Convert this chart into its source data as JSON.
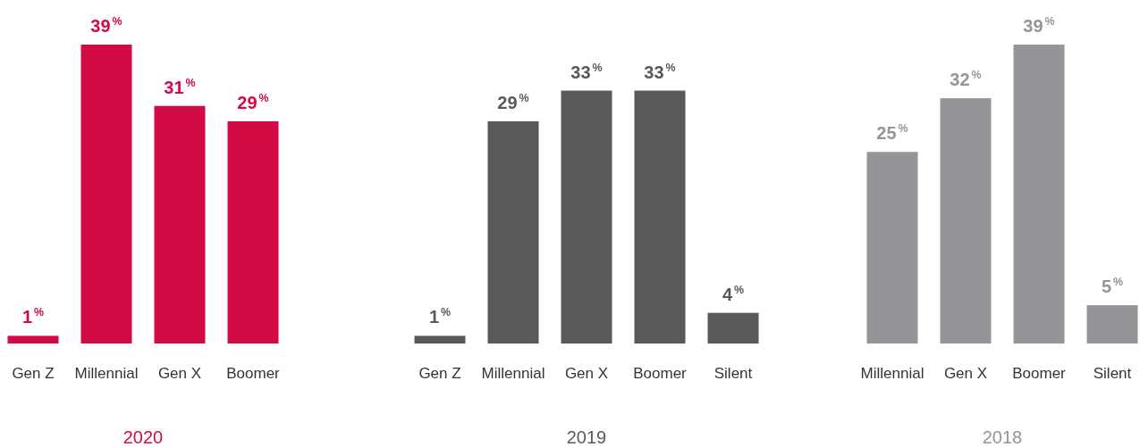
{
  "chart_data": [
    {
      "type": "bar",
      "title": "2020",
      "categories": [
        "Gen Z",
        "Millennial",
        "Gen X",
        "Boomer"
      ],
      "values": [
        1,
        39,
        31,
        29
      ],
      "color": "#d20b44",
      "value_labels": [
        "1$^{%}$",
        "39$^{%}$",
        "31$^{%}$",
        "29$^{%}$"
      ]
    },
    {
      "type": "bar",
      "title": "2019",
      "categories": [
        "Gen Z",
        "Millennial",
        "Gen X",
        "Boomer",
        "Silent"
      ],
      "values": [
        1,
        29,
        33,
        33,
        4
      ],
      "color": "#58595b",
      "value_labels": [
        "1$^{%}$",
        "29$^{%}$",
        "33$^{%}$",
        "33$^{%}$",
        "4$^{%}$"
      ]
    },
    {
      "type": "bar",
      "title": "2018",
      "categories": [
        "Millennial",
        "Gen X",
        "Boomer",
        "Silent"
      ],
      "values": [
        25,
        32,
        39,
        5
      ],
      "color": "#939598",
      "value_labels": [
        "25$^{%}$",
        "32$^{%}$",
        "39$^{%}$",
        "5$^{%}$"
      ]
    }
  ]
}
